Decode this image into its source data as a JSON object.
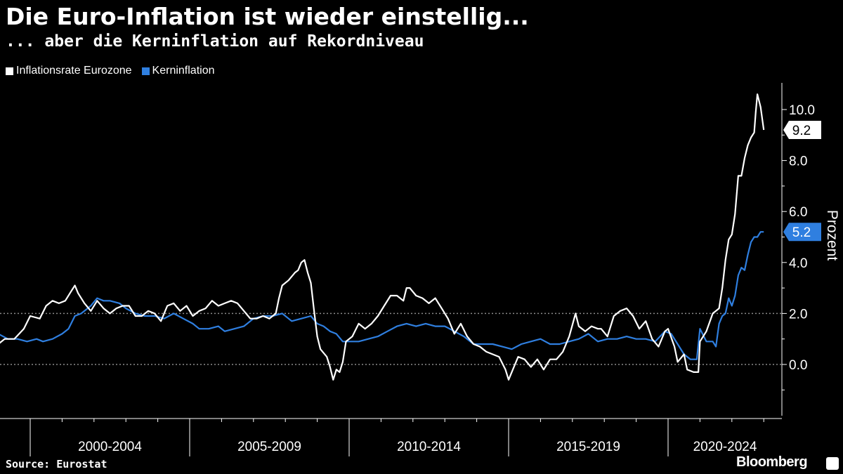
{
  "header": {
    "title": "Die Euro-Inflation ist wieder einstellig...",
    "subtitle": "... aber die Kerninflation auf Rekordniveau"
  },
  "footer": {
    "source": "Source: Eurostat",
    "brand": "Bloomberg"
  },
  "colors": {
    "background": "#000000",
    "headline": "#ffffff",
    "core": "#2f7fe0",
    "grid": "#8a8a8a"
  },
  "chart_data": {
    "type": "line",
    "title": "Die Euro-Inflation ist wieder einstellig...",
    "subtitle": "... aber die Kerninflation auf Rekordniveau",
    "xlabel": "",
    "ylabel": "Prozent",
    "x_range": [
      1998.9,
      2023.2
    ],
    "ylim": [
      -2,
      11
    ],
    "y_ticks": [
      0,
      2,
      4,
      6,
      8,
      10
    ],
    "y_tick_labels": [
      "0.0",
      "2.0",
      "4.0",
      "6.0",
      "8.0",
      "10.0"
    ],
    "dotted_gridlines": [
      0,
      2
    ],
    "x_groups": [
      {
        "label": "2000-2004",
        "start": 2000,
        "end": 2005
      },
      {
        "label": "2005-2009",
        "start": 2005,
        "end": 2010
      },
      {
        "label": "2010-2014",
        "start": 2010,
        "end": 2015
      },
      {
        "label": "2015-2019",
        "start": 2015,
        "end": 2020
      },
      {
        "label": "2020-2024",
        "start": 2020,
        "end": 2025
      }
    ],
    "legend_position": "top-left",
    "series": [
      {
        "name": "Inflationsrate Eurozone",
        "color": "#ffffff",
        "last_value_label": "9.2",
        "points": [
          [
            1999.0,
            0.8
          ],
          [
            1999.2,
            1.0
          ],
          [
            1999.5,
            1.0
          ],
          [
            1999.8,
            1.4
          ],
          [
            2000.0,
            1.9
          ],
          [
            2000.3,
            1.8
          ],
          [
            2000.5,
            2.3
          ],
          [
            2000.7,
            2.5
          ],
          [
            2000.9,
            2.4
          ],
          [
            2001.1,
            2.5
          ],
          [
            2001.3,
            2.9
          ],
          [
            2001.4,
            3.1
          ],
          [
            2001.5,
            2.8
          ],
          [
            2001.7,
            2.4
          ],
          [
            2001.9,
            2.1
          ],
          [
            2002.1,
            2.5
          ],
          [
            2002.3,
            2.2
          ],
          [
            2002.5,
            2.0
          ],
          [
            2002.7,
            2.2
          ],
          [
            2002.9,
            2.3
          ],
          [
            2003.1,
            2.3
          ],
          [
            2003.3,
            1.9
          ],
          [
            2003.5,
            1.9
          ],
          [
            2003.7,
            2.1
          ],
          [
            2003.9,
            2.0
          ],
          [
            2004.1,
            1.7
          ],
          [
            2004.3,
            2.3
          ],
          [
            2004.5,
            2.4
          ],
          [
            2004.7,
            2.1
          ],
          [
            2004.9,
            2.3
          ],
          [
            2005.1,
            1.9
          ],
          [
            2005.3,
            2.1
          ],
          [
            2005.5,
            2.2
          ],
          [
            2005.7,
            2.5
          ],
          [
            2005.9,
            2.3
          ],
          [
            2006.1,
            2.4
          ],
          [
            2006.3,
            2.5
          ],
          [
            2006.5,
            2.4
          ],
          [
            2006.7,
            2.1
          ],
          [
            2006.9,
            1.8
          ],
          [
            2007.1,
            1.8
          ],
          [
            2007.3,
            1.9
          ],
          [
            2007.5,
            1.8
          ],
          [
            2007.7,
            2.0
          ],
          [
            2007.8,
            2.6
          ],
          [
            2007.9,
            3.1
          ],
          [
            2008.1,
            3.3
          ],
          [
            2008.3,
            3.6
          ],
          [
            2008.4,
            3.7
          ],
          [
            2008.5,
            4.0
          ],
          [
            2008.6,
            4.1
          ],
          [
            2008.7,
            3.6
          ],
          [
            2008.8,
            3.2
          ],
          [
            2008.9,
            2.1
          ],
          [
            2009.0,
            1.1
          ],
          [
            2009.1,
            0.6
          ],
          [
            2009.3,
            0.3
          ],
          [
            2009.4,
            -0.1
          ],
          [
            2009.5,
            -0.6
          ],
          [
            2009.6,
            -0.2
          ],
          [
            2009.7,
            -0.3
          ],
          [
            2009.8,
            0.1
          ],
          [
            2009.9,
            0.9
          ],
          [
            2010.1,
            1.1
          ],
          [
            2010.3,
            1.6
          ],
          [
            2010.5,
            1.4
          ],
          [
            2010.7,
            1.6
          ],
          [
            2010.9,
            1.9
          ],
          [
            2011.1,
            2.3
          ],
          [
            2011.3,
            2.7
          ],
          [
            2011.5,
            2.7
          ],
          [
            2011.7,
            2.5
          ],
          [
            2011.8,
            3.0
          ],
          [
            2011.9,
            3.0
          ],
          [
            2012.1,
            2.7
          ],
          [
            2012.3,
            2.6
          ],
          [
            2012.5,
            2.4
          ],
          [
            2012.7,
            2.6
          ],
          [
            2012.9,
            2.2
          ],
          [
            2013.1,
            1.8
          ],
          [
            2013.3,
            1.2
          ],
          [
            2013.5,
            1.6
          ],
          [
            2013.7,
            1.1
          ],
          [
            2013.9,
            0.8
          ],
          [
            2014.1,
            0.7
          ],
          [
            2014.3,
            0.5
          ],
          [
            2014.5,
            0.4
          ],
          [
            2014.7,
            0.3
          ],
          [
            2014.9,
            -0.2
          ],
          [
            2015.0,
            -0.6
          ],
          [
            2015.1,
            -0.3
          ],
          [
            2015.3,
            0.3
          ],
          [
            2015.5,
            0.2
          ],
          [
            2015.7,
            -0.1
          ],
          [
            2015.9,
            0.2
          ],
          [
            2016.1,
            -0.2
          ],
          [
            2016.3,
            0.2
          ],
          [
            2016.5,
            0.2
          ],
          [
            2016.7,
            0.5
          ],
          [
            2016.9,
            1.1
          ],
          [
            2017.1,
            2.0
          ],
          [
            2017.2,
            1.5
          ],
          [
            2017.4,
            1.3
          ],
          [
            2017.6,
            1.5
          ],
          [
            2017.8,
            1.4
          ],
          [
            2017.9,
            1.4
          ],
          [
            2018.1,
            1.1
          ],
          [
            2018.3,
            1.9
          ],
          [
            2018.5,
            2.1
          ],
          [
            2018.7,
            2.2
          ],
          [
            2018.9,
            1.9
          ],
          [
            2019.1,
            1.4
          ],
          [
            2019.3,
            1.7
          ],
          [
            2019.5,
            1.0
          ],
          [
            2019.7,
            0.7
          ],
          [
            2019.9,
            1.3
          ],
          [
            2020.0,
            1.4
          ],
          [
            2020.2,
            0.7
          ],
          [
            2020.3,
            0.1
          ],
          [
            2020.5,
            0.4
          ],
          [
            2020.6,
            -0.2
          ],
          [
            2020.8,
            -0.3
          ],
          [
            2020.95,
            -0.3
          ],
          [
            2021.0,
            0.9
          ],
          [
            2021.2,
            1.3
          ],
          [
            2021.4,
            2.0
          ],
          [
            2021.6,
            2.2
          ],
          [
            2021.7,
            3.0
          ],
          [
            2021.8,
            4.1
          ],
          [
            2021.9,
            4.9
          ],
          [
            2022.0,
            5.1
          ],
          [
            2022.1,
            5.9
          ],
          [
            2022.2,
            7.4
          ],
          [
            2022.3,
            7.4
          ],
          [
            2022.4,
            8.1
          ],
          [
            2022.5,
            8.6
          ],
          [
            2022.6,
            8.9
          ],
          [
            2022.7,
            9.1
          ],
          [
            2022.75,
            9.9
          ],
          [
            2022.8,
            10.6
          ],
          [
            2022.9,
            10.1
          ],
          [
            2023.0,
            9.2
          ]
        ]
      },
      {
        "name": "Kerninflation",
        "color": "#2f7fe0",
        "last_value_label": "5.2",
        "points": [
          [
            1999.0,
            1.2
          ],
          [
            1999.3,
            1.0
          ],
          [
            1999.6,
            1.0
          ],
          [
            1999.9,
            0.9
          ],
          [
            2000.2,
            1.0
          ],
          [
            2000.4,
            0.9
          ],
          [
            2000.7,
            1.0
          ],
          [
            2001.0,
            1.2
          ],
          [
            2001.2,
            1.4
          ],
          [
            2001.4,
            1.9
          ],
          [
            2001.6,
            2.0
          ],
          [
            2001.9,
            2.3
          ],
          [
            2002.1,
            2.6
          ],
          [
            2002.3,
            2.5
          ],
          [
            2002.5,
            2.5
          ],
          [
            2002.8,
            2.4
          ],
          [
            2003.0,
            2.2
          ],
          [
            2003.3,
            2.0
          ],
          [
            2003.6,
            1.9
          ],
          [
            2003.9,
            1.9
          ],
          [
            2004.2,
            1.8
          ],
          [
            2004.5,
            2.0
          ],
          [
            2004.8,
            1.8
          ],
          [
            2005.1,
            1.6
          ],
          [
            2005.3,
            1.4
          ],
          [
            2005.6,
            1.4
          ],
          [
            2005.9,
            1.5
          ],
          [
            2006.1,
            1.3
          ],
          [
            2006.4,
            1.4
          ],
          [
            2006.7,
            1.5
          ],
          [
            2007.0,
            1.8
          ],
          [
            2007.3,
            1.9
          ],
          [
            2007.6,
            1.9
          ],
          [
            2007.9,
            2.0
          ],
          [
            2008.2,
            1.7
          ],
          [
            2008.5,
            1.8
          ],
          [
            2008.8,
            1.9
          ],
          [
            2009.0,
            1.6
          ],
          [
            2009.2,
            1.5
          ],
          [
            2009.4,
            1.3
          ],
          [
            2009.6,
            1.2
          ],
          [
            2009.8,
            0.9
          ],
          [
            2010.0,
            0.9
          ],
          [
            2010.3,
            0.9
          ],
          [
            2010.6,
            1.0
          ],
          [
            2010.9,
            1.1
          ],
          [
            2011.2,
            1.3
          ],
          [
            2011.5,
            1.5
          ],
          [
            2011.8,
            1.6
          ],
          [
            2012.1,
            1.5
          ],
          [
            2012.4,
            1.6
          ],
          [
            2012.7,
            1.5
          ],
          [
            2013.0,
            1.5
          ],
          [
            2013.3,
            1.3
          ],
          [
            2013.6,
            1.1
          ],
          [
            2013.9,
            0.8
          ],
          [
            2014.2,
            0.8
          ],
          [
            2014.5,
            0.8
          ],
          [
            2014.8,
            0.7
          ],
          [
            2015.1,
            0.6
          ],
          [
            2015.4,
            0.8
          ],
          [
            2015.7,
            0.9
          ],
          [
            2016.0,
            1.0
          ],
          [
            2016.3,
            0.8
          ],
          [
            2016.6,
            0.8
          ],
          [
            2016.9,
            0.9
          ],
          [
            2017.2,
            1.0
          ],
          [
            2017.5,
            1.2
          ],
          [
            2017.8,
            0.9
          ],
          [
            2018.1,
            1.0
          ],
          [
            2018.4,
            1.0
          ],
          [
            2018.7,
            1.1
          ],
          [
            2019.0,
            1.0
          ],
          [
            2019.3,
            1.0
          ],
          [
            2019.6,
            0.9
          ],
          [
            2019.9,
            1.3
          ],
          [
            2020.1,
            1.2
          ],
          [
            2020.3,
            0.8
          ],
          [
            2020.5,
            0.4
          ],
          [
            2020.7,
            0.2
          ],
          [
            2020.9,
            0.2
          ],
          [
            2021.0,
            1.4
          ],
          [
            2021.2,
            0.9
          ],
          [
            2021.4,
            0.9
          ],
          [
            2021.5,
            0.7
          ],
          [
            2021.6,
            1.6
          ],
          [
            2021.7,
            1.9
          ],
          [
            2021.8,
            2.0
          ],
          [
            2021.9,
            2.6
          ],
          [
            2022.0,
            2.3
          ],
          [
            2022.1,
            2.7
          ],
          [
            2022.2,
            3.5
          ],
          [
            2022.3,
            3.8
          ],
          [
            2022.4,
            3.7
          ],
          [
            2022.5,
            4.3
          ],
          [
            2022.6,
            4.8
          ],
          [
            2022.7,
            5.0
          ],
          [
            2022.8,
            5.0
          ],
          [
            2022.9,
            5.2
          ],
          [
            2023.0,
            5.2
          ]
        ]
      }
    ]
  }
}
